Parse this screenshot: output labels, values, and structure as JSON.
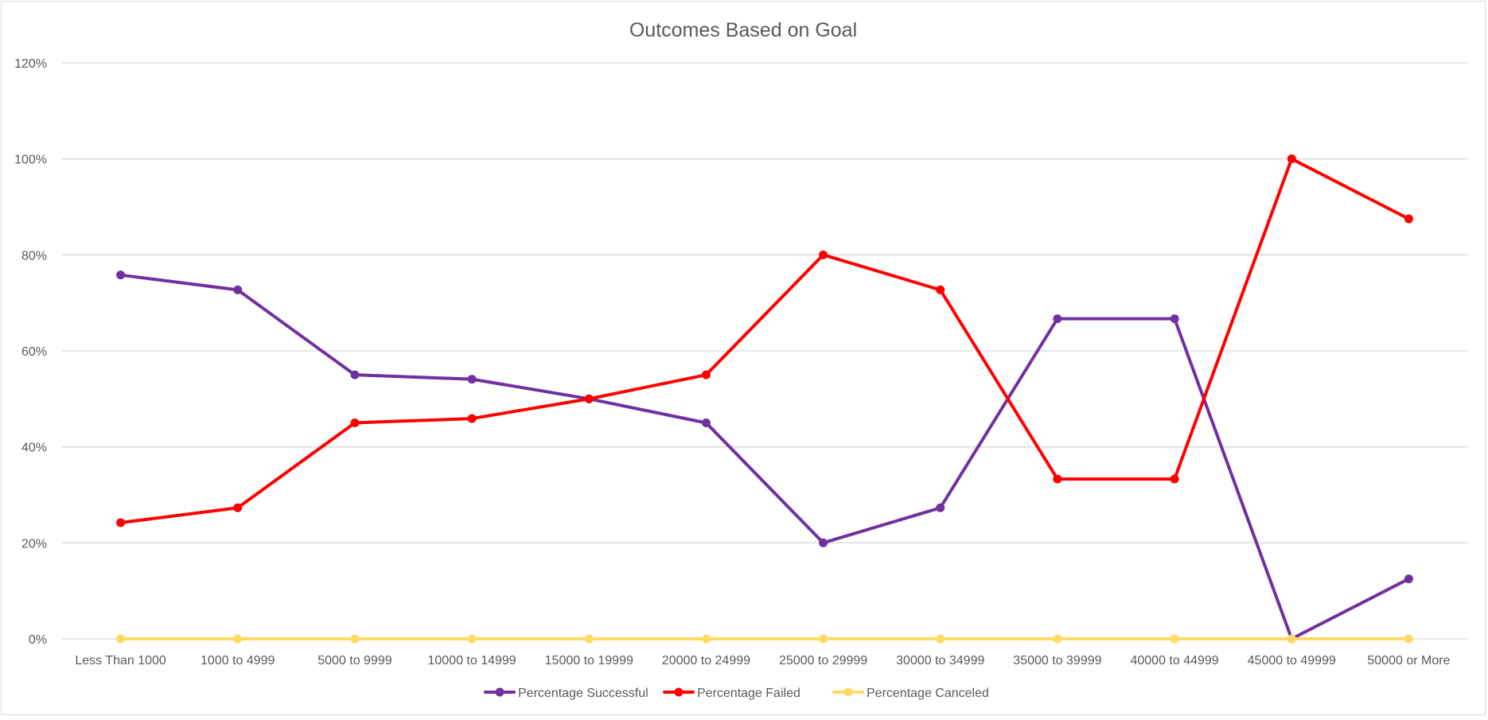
{
  "chart_data": {
    "type": "line",
    "title": "Outcomes Based on Goal",
    "xlabel": "",
    "ylabel": "",
    "categories": [
      "Less Than 1000",
      "1000 to 4999",
      "5000 to 9999",
      "10000 to 14999",
      "15000 to 19999",
      "20000 to 24999",
      "25000 to 29999",
      "30000 to 34999",
      "35000 to 39999",
      "40000 to 44999",
      "45000 to 49999",
      "50000 or More"
    ],
    "ylim": [
      0,
      1.2
    ],
    "yticks": [
      0,
      0.2,
      0.4,
      0.6,
      0.8,
      1.0,
      1.2
    ],
    "ytick_labels": [
      "0%",
      "20%",
      "40%",
      "60%",
      "80%",
      "100%",
      "120%"
    ],
    "grid": true,
    "legend_position": "bottom",
    "series": [
      {
        "name": "Percentage Successful",
        "color": "#7030a0",
        "values": [
          0.758,
          0.727,
          0.55,
          0.541,
          0.5,
          0.45,
          0.2,
          0.273,
          0.667,
          0.667,
          0.0,
          0.125
        ]
      },
      {
        "name": "Percentage Failed",
        "color": "#ff0000",
        "values": [
          0.242,
          0.273,
          0.45,
          0.459,
          0.5,
          0.55,
          0.8,
          0.727,
          0.333,
          0.333,
          1.0,
          0.875
        ]
      },
      {
        "name": "Percentage Canceled",
        "color": "#ffd966",
        "values": [
          0,
          0,
          0,
          0,
          0,
          0,
          0,
          0,
          0,
          0,
          0,
          0
        ]
      }
    ]
  }
}
